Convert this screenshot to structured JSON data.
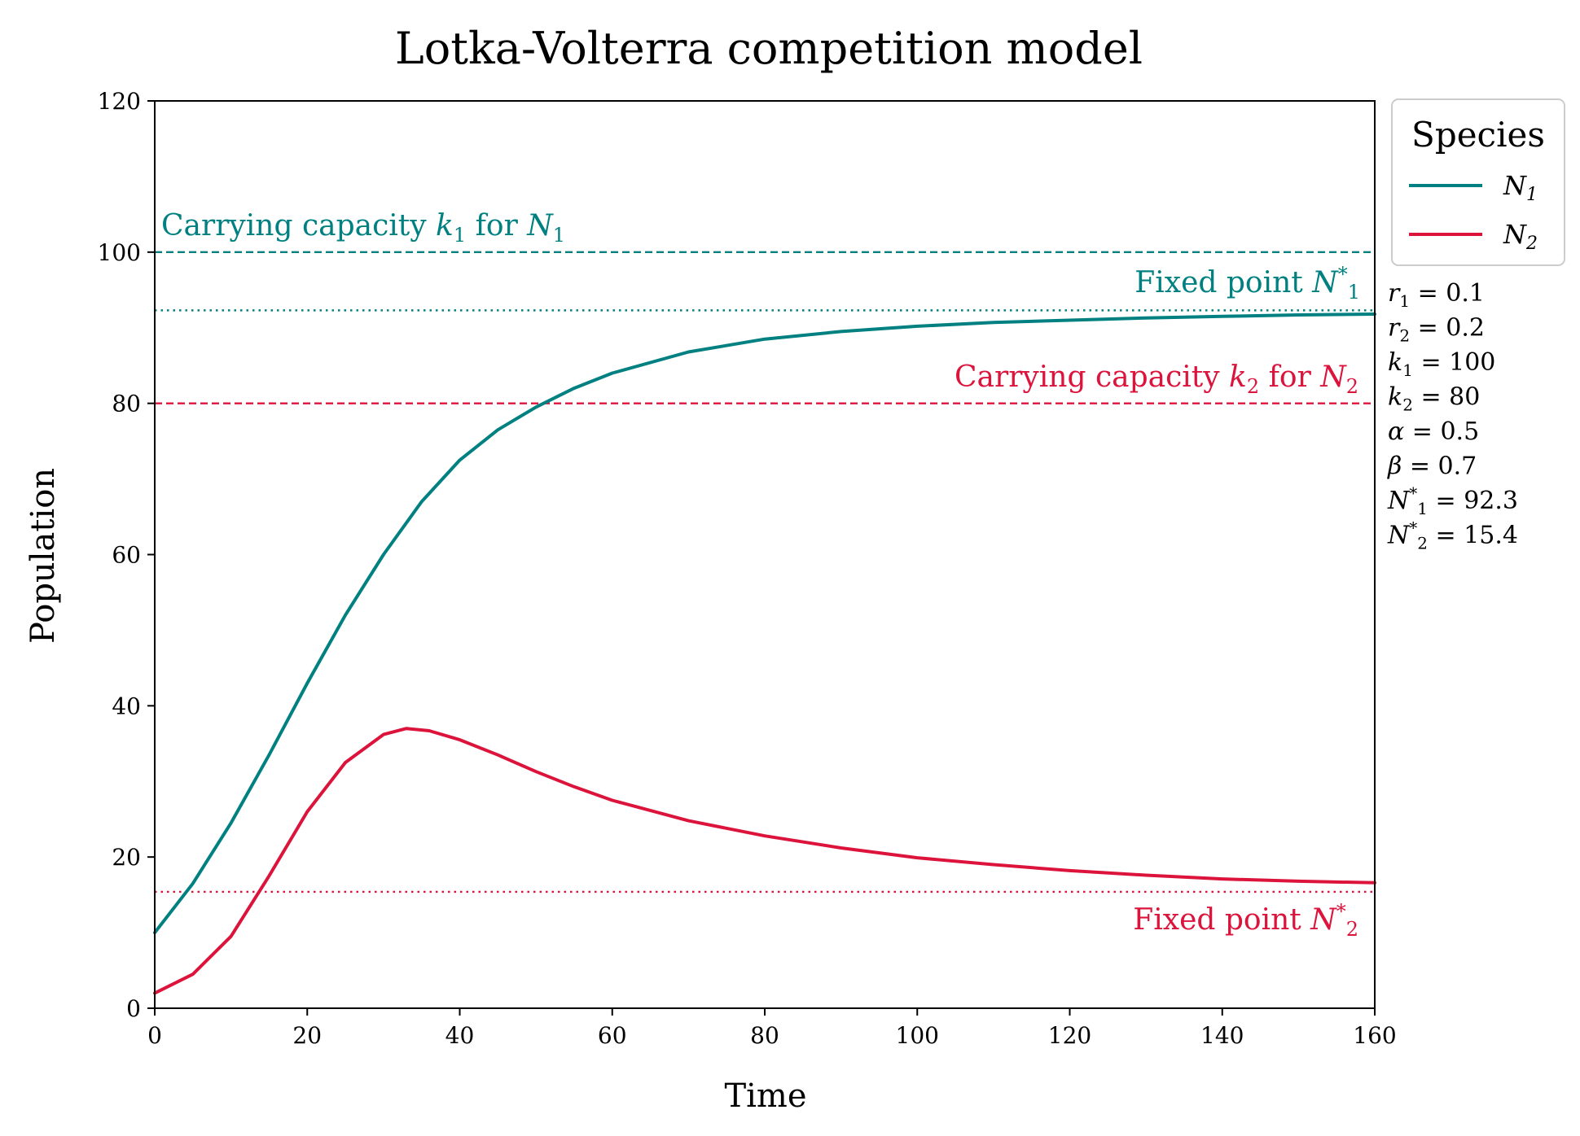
{
  "chart_data": {
    "type": "line",
    "title": "Lotka-Volterra competition model",
    "xlabel": "Time",
    "ylabel": "Population",
    "xlim": [
      0,
      160
    ],
    "ylim": [
      0,
      120
    ],
    "xticks": [
      0,
      20,
      40,
      60,
      80,
      100,
      120,
      140,
      160
    ],
    "yticks": [
      0,
      20,
      40,
      60,
      80,
      100,
      120
    ],
    "grid": false,
    "colors": {
      "N1": "#008080",
      "N2": "#dc143c"
    },
    "legend": {
      "title": "Species",
      "placement": "outside-top-right",
      "entries": [
        {
          "main": "N",
          "sub": "1",
          "color": "#008080"
        },
        {
          "main": "N",
          "sub": "2",
          "color": "#dc143c"
        }
      ]
    },
    "series": [
      {
        "color": "#008080",
        "x": [
          0,
          5,
          10,
          15,
          20,
          25,
          30,
          35,
          40,
          45,
          50,
          55,
          60,
          70,
          80,
          90,
          100,
          110,
          120,
          130,
          140,
          150,
          160
        ],
        "y": [
          10,
          16.5,
          24.5,
          33.5,
          43,
          52,
          60,
          67,
          72.5,
          76.5,
          79.5,
          82,
          84,
          86.8,
          88.5,
          89.5,
          90.2,
          90.7,
          91,
          91.3,
          91.5,
          91.7,
          91.8
        ]
      },
      {
        "color": "#dc143c",
        "x": [
          0,
          5,
          10,
          15,
          20,
          25,
          30,
          33,
          36,
          40,
          45,
          50,
          55,
          60,
          70,
          80,
          90,
          100,
          110,
          120,
          130,
          140,
          150,
          160
        ],
        "y": [
          2,
          4.5,
          9.5,
          17.5,
          26,
          32.5,
          36.2,
          37,
          36.7,
          35.5,
          33.5,
          31.3,
          29.3,
          27.5,
          24.8,
          22.8,
          21.2,
          19.9,
          19,
          18.2,
          17.6,
          17.1,
          16.8,
          16.6
        ]
      }
    ],
    "hlines": [
      {
        "y": 100,
        "style": "dashed",
        "color": "#008080"
      },
      {
        "y": 92.3,
        "style": "dotted",
        "color": "#008080"
      },
      {
        "y": 80,
        "style": "dashed",
        "color": "#dc143c"
      },
      {
        "y": 15.4,
        "style": "dotted",
        "color": "#dc143c"
      }
    ],
    "annotations": [
      {
        "id": "ann-k1",
        "color": "#008080",
        "parts": [
          {
            "t": "Carrying capacity "
          },
          {
            "t": "k",
            "it": true
          },
          {
            "t": "1",
            "sub": true
          },
          {
            "t": " for "
          },
          {
            "t": "N",
            "it": true
          },
          {
            "t": "1",
            "sub": true
          }
        ]
      },
      {
        "id": "ann-n1star",
        "color": "#008080",
        "parts": [
          {
            "t": "Fixed point "
          },
          {
            "t": "N",
            "it": true
          },
          {
            "t": "*",
            "sup": true
          },
          {
            "t": "1",
            "sub": true
          }
        ]
      },
      {
        "id": "ann-k2",
        "color": "#dc143c",
        "parts": [
          {
            "t": "Carrying capacity "
          },
          {
            "t": "k",
            "it": true
          },
          {
            "t": "2",
            "sub": true
          },
          {
            "t": " for "
          },
          {
            "t": "N",
            "it": true
          },
          {
            "t": "2",
            "sub": true
          }
        ]
      },
      {
        "id": "ann-n2star",
        "color": "#dc143c",
        "parts": [
          {
            "t": "Fixed point "
          },
          {
            "t": "N",
            "it": true
          },
          {
            "t": "*",
            "sup": true
          },
          {
            "t": "2",
            "sub": true
          }
        ]
      }
    ],
    "parameters": [
      {
        "sym": "r",
        "sub": "1",
        "value": "= 0.1"
      },
      {
        "sym": "r",
        "sub": "2",
        "value": "= 0.2"
      },
      {
        "sym": "k",
        "sub": "1",
        "value": "= 100"
      },
      {
        "sym": "k",
        "sub": "2",
        "value": "= 80"
      },
      {
        "sym": "α",
        "value": "= 0.5"
      },
      {
        "sym": "β",
        "value": "= 0.7"
      },
      {
        "sym": "N",
        "sub": "1",
        "sup": "*",
        "value": "= 92.3"
      },
      {
        "sym": "N",
        "sub": "2",
        "sup": "*",
        "value": "= 15.4"
      }
    ]
  }
}
